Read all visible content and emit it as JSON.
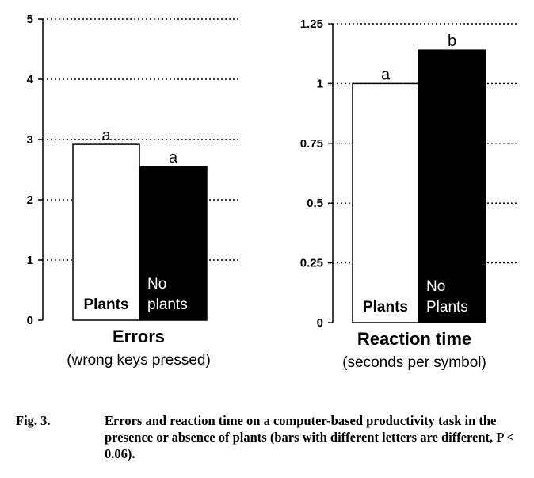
{
  "chart_data": [
    {
      "type": "bar",
      "title": "",
      "xlabel": "Errors",
      "xlabel_sub": "(wrong keys pressed)",
      "ylabel": "",
      "ylim": [
        0,
        5
      ],
      "yticks": [
        "0",
        "1",
        "2",
        "3",
        "4",
        "5"
      ],
      "categories": [
        "Plants",
        "No plants"
      ],
      "category_label_lines": [
        [
          "Plants"
        ],
        [
          "No",
          "plants"
        ]
      ],
      "values": [
        2.92,
        2.55
      ],
      "significance": [
        "a",
        "a"
      ],
      "bar_colors": [
        "#ffffff",
        "#000000"
      ],
      "grid": true
    },
    {
      "type": "bar",
      "title": "",
      "xlabel": "Reaction time",
      "xlabel_sub": "(seconds per symbol)",
      "ylabel": "",
      "ylim": [
        0,
        1.25
      ],
      "yticks": [
        "0",
        "0.25",
        "0.5",
        "0.75",
        "1",
        "1.25"
      ],
      "categories": [
        "Plants",
        "No Plants"
      ],
      "category_label_lines": [
        [
          "Plants"
        ],
        [
          "No",
          "Plants"
        ]
      ],
      "values": [
        1.0,
        1.14
      ],
      "significance": [
        "a",
        "b"
      ],
      "bar_colors": [
        "#ffffff",
        "#000000"
      ],
      "grid": true
    }
  ],
  "caption": {
    "label": "Fig. 3.",
    "text": "Errors and reaction time on a computer-based productivity task in the presence or absence of plants (bars with different letters are different, P < 0.06)."
  }
}
